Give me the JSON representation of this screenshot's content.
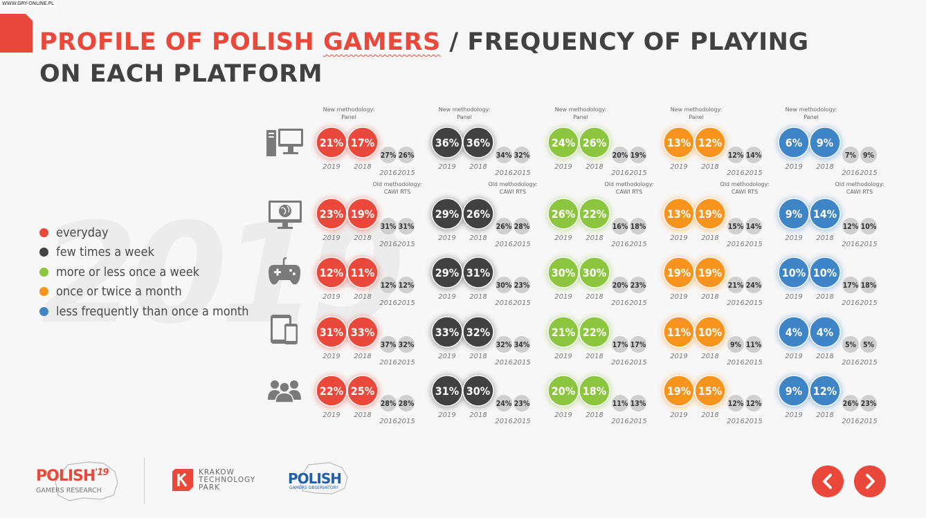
{
  "watermark": "WWW.GRY-ONLINE.PL",
  "title": {
    "part1": "PROFILE OF POLISH ",
    "part2": "GAMERS",
    "part3": " / FREQUENCY OF PLAYING",
    "line2": "ON EACH PLATFORM"
  },
  "background_year": "2019",
  "colors": {
    "everyday": "#e9483a",
    "few times a week": "#414141",
    "more or less once a week": "#8cc63f",
    "once or twice a month": "#f7941d",
    "less frequently than once a month": "#3d85c6",
    "old": "#cfcfcf"
  },
  "legend": [
    {
      "label": "everyday",
      "color": "#e9483a"
    },
    {
      "label": "few times a week",
      "color": "#414141"
    },
    {
      "label": "more or less once a week",
      "color": "#8cc63f"
    },
    {
      "label": "once or twice a month",
      "color": "#f7941d"
    },
    {
      "label": "less frequently than once a month",
      "color": "#3d85c6"
    }
  ],
  "notes": {
    "new_line1": "New methodology:",
    "new_line2": "Panel",
    "old_line1": "Old methodology:",
    "old_line2": "CAWI RTS"
  },
  "chart_data": {
    "type": "table",
    "years": [
      "2019",
      "2018",
      "2016",
      "2015"
    ],
    "platform_icons": [
      "pc-icon",
      "browser-icon",
      "gamepad-icon",
      "mobile-icon",
      "social-icon"
    ],
    "series": [
      {
        "name": "everyday",
        "values": [
          [
            21,
            17,
            27,
            26
          ],
          [
            23,
            19,
            31,
            31
          ],
          [
            12,
            11,
            12,
            12
          ],
          [
            31,
            33,
            37,
            32
          ],
          [
            22,
            25,
            28,
            28
          ]
        ]
      },
      {
        "name": "few times a week",
        "values": [
          [
            36,
            36,
            34,
            32
          ],
          [
            29,
            26,
            26,
            28
          ],
          [
            29,
            31,
            30,
            23
          ],
          [
            33,
            32,
            32,
            34
          ],
          [
            31,
            30,
            24,
            23
          ]
        ]
      },
      {
        "name": "more or less once a week",
        "values": [
          [
            24,
            26,
            20,
            19
          ],
          [
            26,
            22,
            16,
            18
          ],
          [
            30,
            30,
            20,
            23
          ],
          [
            21,
            22,
            17,
            17
          ],
          [
            20,
            18,
            11,
            13
          ]
        ]
      },
      {
        "name": "once or twice a month",
        "values": [
          [
            13,
            12,
            12,
            14
          ],
          [
            13,
            19,
            15,
            14
          ],
          [
            19,
            19,
            21,
            24
          ],
          [
            11,
            10,
            9,
            11
          ],
          [
            19,
            15,
            12,
            12
          ]
        ]
      },
      {
        "name": "less frequently than once a month",
        "values": [
          [
            6,
            9,
            7,
            9
          ],
          [
            9,
            14,
            12,
            10
          ],
          [
            10,
            10,
            17,
            18
          ],
          [
            4,
            4,
            5,
            5
          ],
          [
            9,
            12,
            26,
            23
          ]
        ]
      }
    ]
  },
  "footer": {
    "polish19_main": "POLISH",
    "polish19_num": "'19",
    "polish19_sub": "GAMERS RESEARCH",
    "ktp_line1": "KRAKOW",
    "ktp_line2": "TECHNOLOGY",
    "ktp_line3": "PARK",
    "pgo_main": "POLISH",
    "pgo_sub": "GAMERS OBSERVATORY"
  }
}
